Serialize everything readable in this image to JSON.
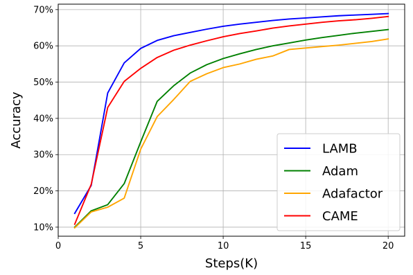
{
  "chart_data": {
    "type": "line",
    "xlabel": "Steps(K)",
    "ylabel": "Accuracy",
    "xlim": [
      0,
      21
    ],
    "ylim": [
      7.5,
      71.5
    ],
    "x_ticks": [
      0,
      5,
      10,
      15,
      20
    ],
    "x_tick_labels": [
      "0",
      "5",
      "10",
      "15",
      "20"
    ],
    "y_ticks": [
      10,
      20,
      30,
      40,
      50,
      60,
      70
    ],
    "y_tick_labels": [
      "10%",
      "20%",
      "30%",
      "40%",
      "50%",
      "60%",
      "70%"
    ],
    "grid": true,
    "legend_position": "bottom-right",
    "x": [
      1,
      2,
      3,
      4,
      5,
      6,
      7,
      8,
      9,
      10,
      11,
      12,
      13,
      14,
      15,
      16,
      17,
      18,
      19,
      20
    ],
    "series": [
      {
        "name": "LAMB",
        "color": "#0000ff",
        "values": [
          13.8,
          21.5,
          47.0,
          55.3,
          59.3,
          61.5,
          62.8,
          63.7,
          64.6,
          65.4,
          66.0,
          66.5,
          67.0,
          67.4,
          67.7,
          68.0,
          68.3,
          68.5,
          68.7,
          68.9
        ]
      },
      {
        "name": "Adam",
        "color": "#008000",
        "values": [
          10.0,
          14.5,
          16.2,
          22.0,
          33.5,
          44.7,
          49.0,
          52.5,
          54.8,
          56.5,
          57.8,
          59.0,
          60.0,
          60.8,
          61.6,
          62.3,
          62.9,
          63.5,
          64.0,
          64.5
        ]
      },
      {
        "name": "Adafactor",
        "color": "#ffa500",
        "values": [
          9.8,
          14.2,
          15.5,
          18.0,
          31.5,
          40.5,
          45.2,
          50.2,
          52.3,
          54.0,
          55.0,
          56.3,
          57.2,
          59.0,
          59.4,
          59.8,
          60.2,
          60.7,
          61.2,
          61.9
        ]
      },
      {
        "name": "CAME",
        "color": "#ff0000",
        "values": [
          10.8,
          21.8,
          43.0,
          50.2,
          53.8,
          56.8,
          58.8,
          60.2,
          61.4,
          62.5,
          63.4,
          64.1,
          64.9,
          65.5,
          66.0,
          66.5,
          66.9,
          67.2,
          67.6,
          68.1
        ]
      }
    ]
  }
}
